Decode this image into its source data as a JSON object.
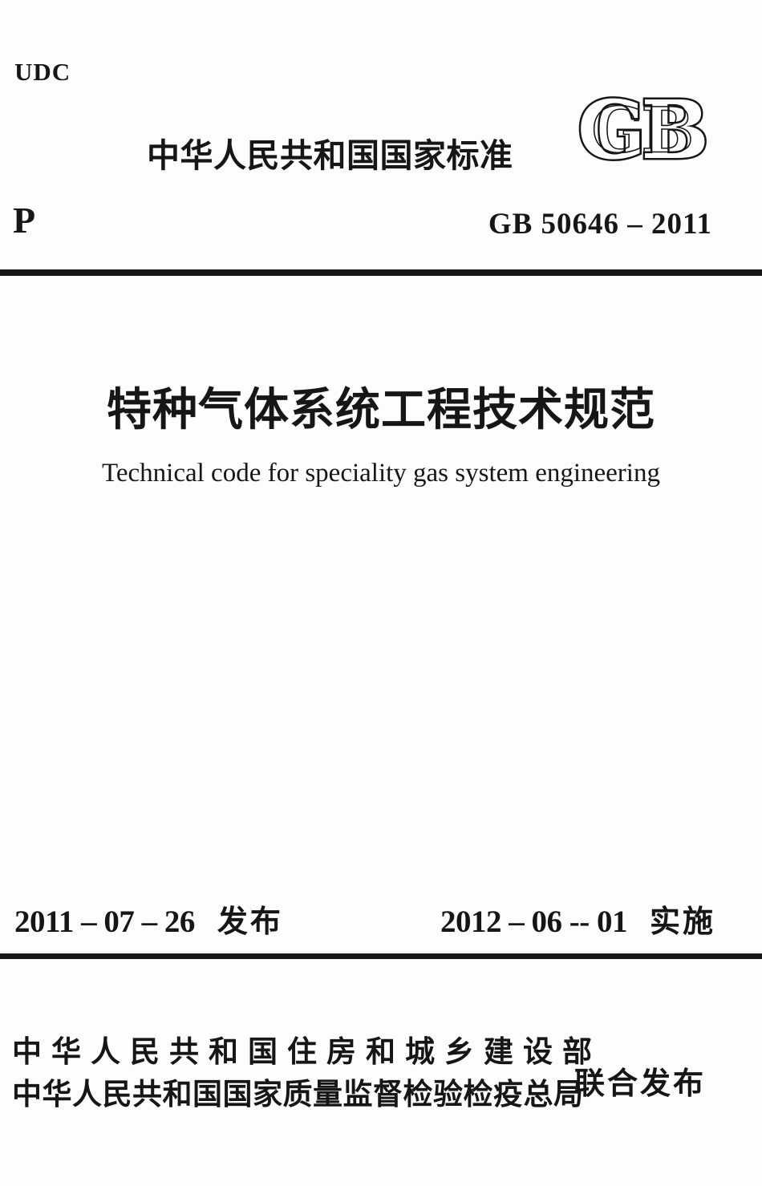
{
  "header": {
    "udc_label": "UDC",
    "title": "中华人民共和国国家标准",
    "gb_logo_text": "GB",
    "classification_code": "P",
    "standard_number": "GB 50646 – 2011"
  },
  "body": {
    "title_zh": "特种气体系统工程技术规范",
    "title_en": "Technical code for speciality gas system engineering"
  },
  "footer": {
    "issue_date": "2011 – 07 – 26",
    "issue_label": "发布",
    "implement_date": "2012 – 06 -- 01",
    "implement_label": "实施",
    "publishers": [
      "中华人民共和国住房和城乡建设部",
      "中华人民共和国国家质量监督检验检疫总局"
    ],
    "joint_release_label": "联合发布"
  },
  "colors": {
    "ink": "#161616",
    "paper": "#fdfdfd"
  }
}
